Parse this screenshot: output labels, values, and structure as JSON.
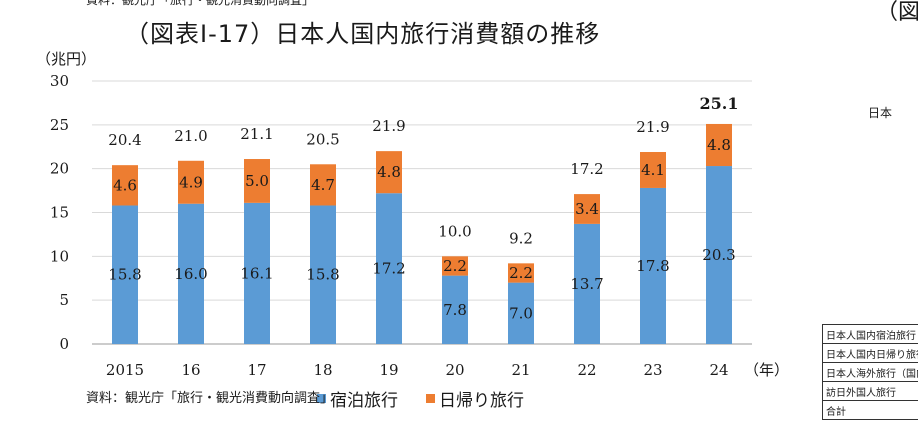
{
  "header": {
    "top_source": "資料：観光庁「旅行・観光消費動向調査」",
    "right_title_partial": "（図表",
    "right_text_partial": "日本"
  },
  "chart_data": {
    "type": "bar",
    "stacked": true,
    "title": "（図表Ⅰ-17）日本人国内旅行消費額の推移",
    "ylabel": "（兆円）",
    "xlabel": "（年）",
    "ylim": [
      0,
      30
    ],
    "yticks": [
      0,
      5,
      10,
      15,
      20,
      25,
      30
    ],
    "categories": [
      "2015",
      "16",
      "17",
      "18",
      "19",
      "20",
      "21",
      "22",
      "23",
      "24"
    ],
    "series": [
      {
        "name": "宿泊旅行",
        "color": "#5b9bd5",
        "values": [
          15.8,
          16.0,
          16.1,
          15.8,
          17.2,
          7.8,
          7.0,
          13.7,
          17.8,
          20.3
        ],
        "labels": [
          "15.8",
          "16.0",
          "16.1",
          "15.8",
          "17.2",
          "7.8",
          "7.0",
          "13.7",
          "17.8",
          "20.3"
        ]
      },
      {
        "name": "日帰り旅行",
        "color": "#ed7d31",
        "values": [
          4.6,
          4.9,
          5.0,
          4.7,
          4.8,
          2.2,
          2.2,
          3.4,
          4.1,
          4.8
        ],
        "labels": [
          "4.6",
          "4.9",
          "5.0",
          "4.7",
          "4.8",
          "2.2",
          "2.2",
          "3.4",
          "4.1",
          "4.8"
        ]
      }
    ],
    "totals": [
      "20.4",
      "21.0",
      "21.1",
      "20.5",
      "21.9",
      "10.0",
      "9.2",
      "17.2",
      "21.9",
      "25.1"
    ],
    "grid": true,
    "legend_position": "bottom"
  },
  "footer": {
    "source": "資料：観光庁「旅行・観光消費動向調査」"
  },
  "right_table": {
    "rows": [
      "日本人国内宿泊旅行",
      "日本人国内日帰り旅行",
      "日本人海外旅行（国内分）",
      "訪日外国人旅行",
      "合計"
    ]
  }
}
